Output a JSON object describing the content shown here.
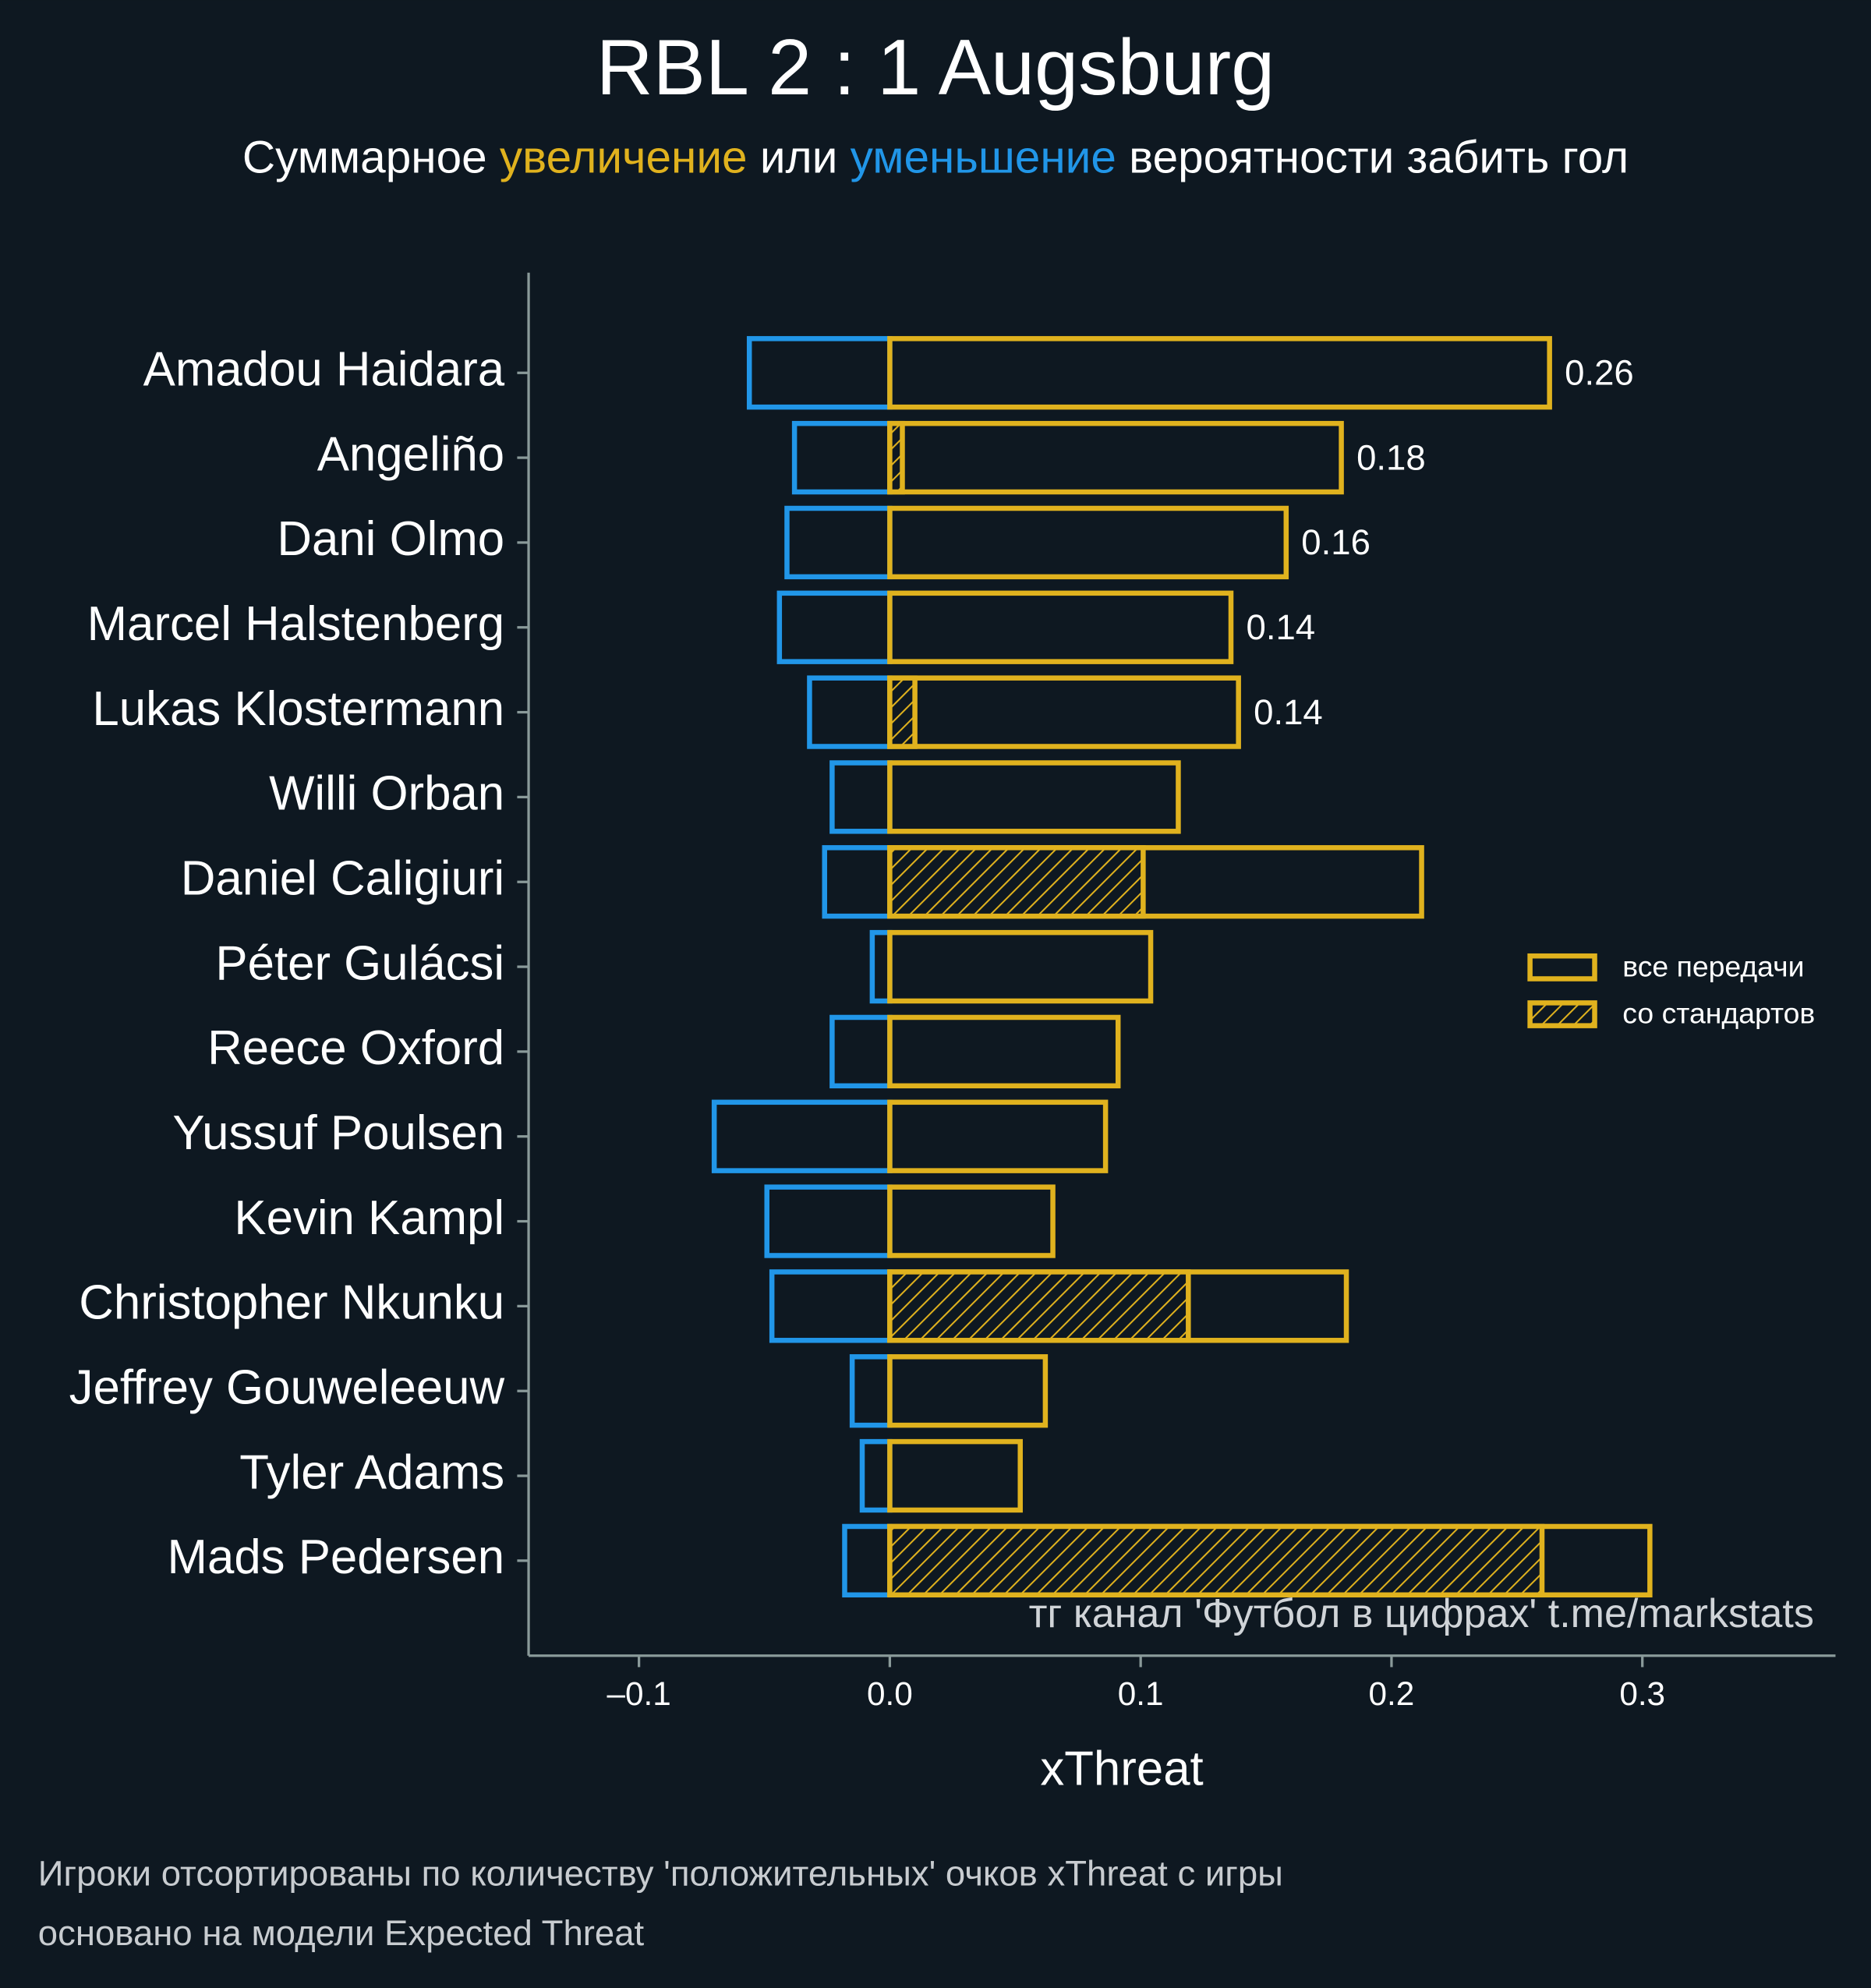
{
  "chart_data": {
    "type": "bar",
    "title": "RBL 2 : 1 Augsburg",
    "subtitle": [
      "Суммарное",
      "увеличение",
      "или",
      "уменьшение",
      "вероятности забить гол"
    ],
    "categories": [
      "Amadou Haidara",
      "Angeliño",
      "Dani Olmo",
      "Marcel Halstenberg",
      "Lukas Klostermann",
      "Willi Orban",
      "Daniel Caligiuri",
      "Péter Gulácsi",
      "Reece Oxford",
      "Yussuf Poulsen",
      "Kevin Kampl",
      "Christopher Nkunku",
      "Jeffrey Gouweleeuw",
      "Tyler Adams",
      "Mads Pedersen"
    ],
    "series": [
      {
        "name": "все передачи",
        "color": "#e0b21e",
        "values": [
          0.263,
          0.18,
          0.158,
          0.136,
          0.139,
          0.115,
          0.212,
          0.104,
          0.091,
          0.086,
          0.065,
          0.182,
          0.062,
          0.052,
          0.303
        ],
        "value_labels": [
          "0.26",
          "0.18",
          "0.16",
          "0.14",
          "0.14",
          null,
          null,
          null,
          null,
          null,
          null,
          null,
          null,
          null,
          null
        ]
      },
      {
        "name": "со стандартов",
        "color": "#e0b21e",
        "hatch": true,
        "values": [
          0,
          0.005,
          0,
          0,
          0.01,
          0,
          0.101,
          0,
          0,
          0,
          0,
          0.119,
          0,
          0,
          0.26
        ]
      }
    ],
    "negative_color": "#2196e8",
    "negative_values": [
      -0.056,
      -0.038,
      -0.041,
      -0.044,
      -0.032,
      -0.023,
      -0.026,
      -0.007,
      -0.023,
      -0.07,
      -0.049,
      -0.047,
      -0.015,
      -0.011,
      -0.018
    ],
    "xlabel": "xThreat",
    "xlim": [
      -0.144,
      0.377
    ],
    "xticks": [
      {
        "value": -0.1,
        "label": "–0.1"
      },
      {
        "value": 0,
        "label": "0.0"
      },
      0.1,
      0.2,
      0.3
    ],
    "annotation": "тг канал 'Футбол в цифрах'  t.me/markstats",
    "notes": [
      "Игроки отсортированы по количеству 'положительных' очков xThreat с игры",
      "основано на модели Expected Threat"
    ],
    "legend": "right"
  }
}
